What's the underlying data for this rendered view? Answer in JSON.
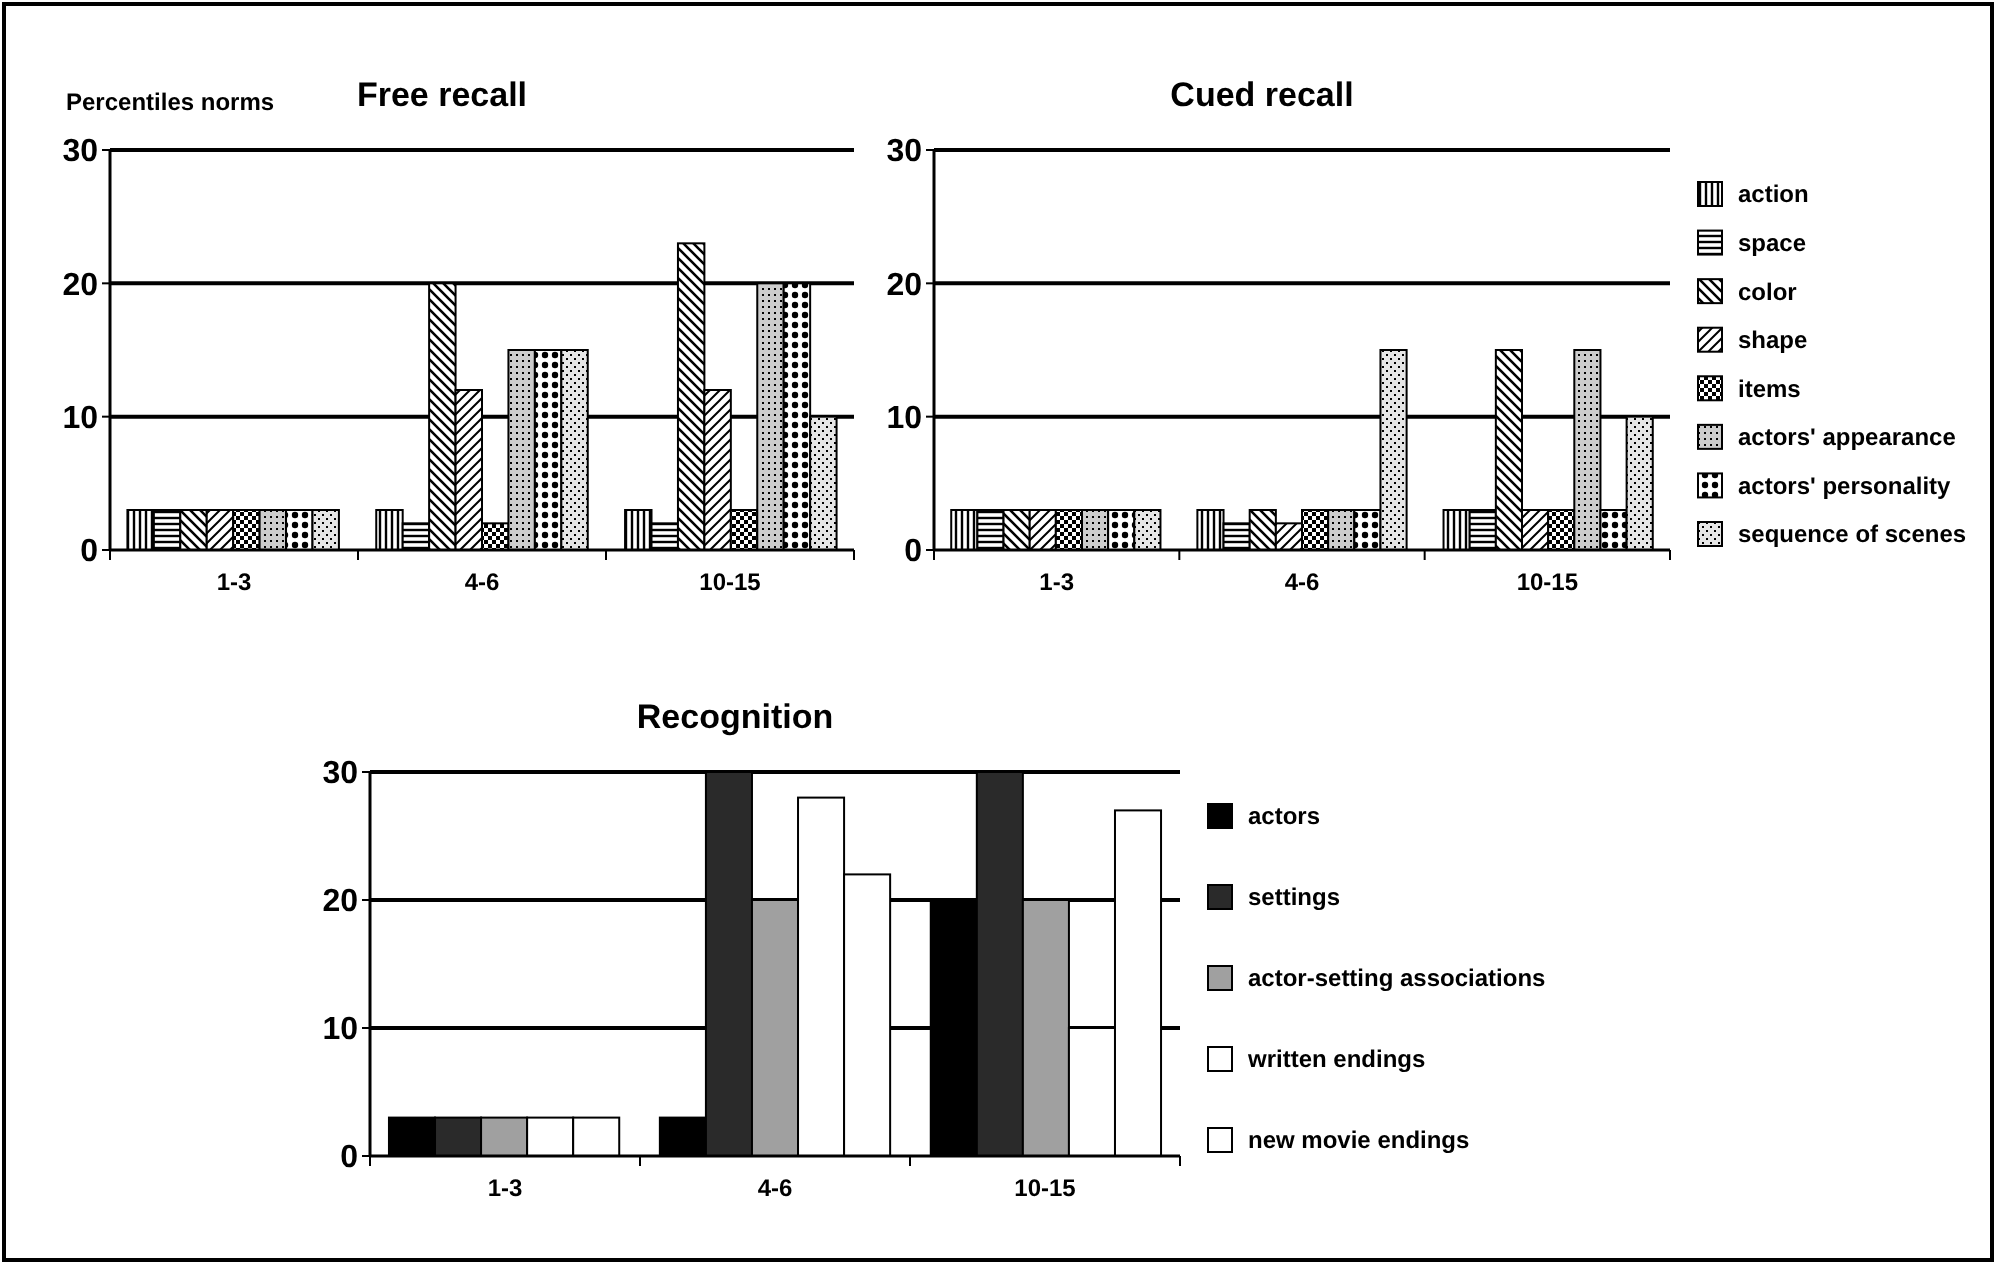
{
  "chart_data": [
    {
      "type": "bar",
      "title": "Free recall",
      "ylabel": "Percentiles norms",
      "categories": [
        "1-3",
        "4-6",
        "10-15"
      ],
      "ylim": [
        0,
        30
      ],
      "yticks": [
        0,
        10,
        20,
        30
      ],
      "grid": "y",
      "legend": false,
      "series": [
        {
          "color": "#000000",
          "values": [
            3,
            3,
            3
          ]
        },
        {
          "color": "#000000",
          "values": [
            3,
            2,
            2
          ]
        },
        {
          "color": "#000000",
          "values": [
            3,
            20,
            23
          ]
        },
        {
          "color": "#000000",
          "values": [
            3,
            12,
            12
          ]
        },
        {
          "color": "#000000",
          "values": [
            3,
            2,
            3
          ]
        },
        {
          "color": "#000000",
          "values": [
            3,
            15,
            20
          ]
        },
        {
          "color": "#000000",
          "values": [
            3,
            15,
            20
          ]
        },
        {
          "color": "#000000",
          "values": [
            3,
            15,
            10
          ]
        }
      ]
    },
    {
      "type": "bar",
      "title": "Cued recall",
      "categories": [
        "1-3",
        "4-6",
        "10-15"
      ],
      "ylim": [
        0,
        30
      ],
      "yticks": [
        0,
        10,
        20,
        30
      ],
      "grid": "y",
      "legend": "right",
      "series": [
        {
          "name": "action",
          "color": "#000000",
          "values": [
            3,
            3,
            3
          ]
        },
        {
          "name": "space",
          "color": "#000000",
          "values": [
            3,
            2,
            3
          ]
        },
        {
          "name": "color",
          "color": "#000000",
          "values": [
            3,
            3,
            15
          ]
        },
        {
          "name": "shape",
          "color": "#000000",
          "values": [
            3,
            2,
            3
          ]
        },
        {
          "name": "items",
          "color": "#000000",
          "values": [
            3,
            3,
            3
          ]
        },
        {
          "name": "actors' appearance",
          "color": "#000000",
          "values": [
            3,
            3,
            15
          ]
        },
        {
          "name": "actors' personality",
          "color": "#000000",
          "values": [
            3,
            3,
            3
          ]
        },
        {
          "name": "sequence of scenes",
          "color": "#000000",
          "values": [
            3,
            15,
            10
          ]
        }
      ]
    },
    {
      "type": "bar",
      "title": "Recognition",
      "categories": [
        "1-3",
        "4-6",
        "10-15"
      ],
      "ylim": [
        0,
        30
      ],
      "yticks": [
        0,
        10,
        20,
        30
      ],
      "grid": "y",
      "legend": "right",
      "series": [
        {
          "name": "actors",
          "color": "#000000",
          "values": [
            3,
            3,
            20
          ]
        },
        {
          "name": "settings",
          "color": "#2a2a2a",
          "values": [
            3,
            30,
            30
          ]
        },
        {
          "name": "actor-setting associations",
          "color": "#a0a0a0",
          "values": [
            3,
            20,
            20
          ]
        },
        {
          "name": "written endings",
          "color": "#ffffff",
          "values": [
            3,
            28,
            10
          ]
        },
        {
          "name": "new movie endings",
          "color": "#ffffff",
          "values": [
            3,
            22,
            27
          ]
        }
      ]
    }
  ]
}
